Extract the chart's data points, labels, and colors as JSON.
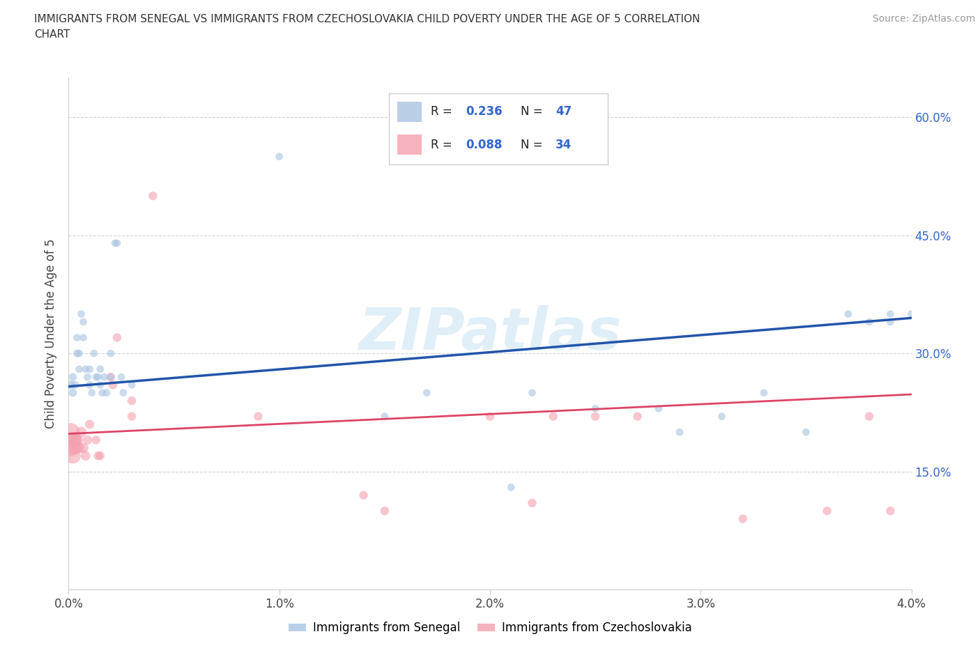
{
  "title_line1": "IMMIGRANTS FROM SENEGAL VS IMMIGRANTS FROM CZECHOSLOVAKIA CHILD POVERTY UNDER THE AGE OF 5 CORRELATION",
  "title_line2": "CHART",
  "ylabel": "Child Poverty Under the Age of 5",
  "source": "Source: ZipAtlas.com",
  "xlim": [
    0.0,
    0.04
  ],
  "ylim": [
    0.0,
    0.65
  ],
  "xtick_vals": [
    0.0,
    0.01,
    0.02,
    0.03,
    0.04
  ],
  "xtick_labels": [
    "0.0%",
    "1.0%",
    "2.0%",
    "3.0%",
    "4.0%"
  ],
  "ytick_vals": [
    0.0,
    0.15,
    0.3,
    0.45,
    0.6
  ],
  "ytick_labels_right": [
    "",
    "15.0%",
    "30.0%",
    "45.0%",
    "60.0%"
  ],
  "blue_fill": "#A8C4E0",
  "pink_fill": "#F4A0B0",
  "blue_line": "#2255AA",
  "pink_line": "#DD4466",
  "watermark_text": "ZIPatlas",
  "r1": "0.236",
  "n1": "47",
  "r2": "0.088",
  "n2": "34",
  "accent_color": "#3366CC",
  "legend_label1": "Immigrants from Senegal",
  "legend_label2": "Immigrants from Czechoslovakia",
  "blue_x": [
    0.0001,
    0.0002,
    0.0002,
    0.0003,
    0.0004,
    0.0004,
    0.0005,
    0.0005,
    0.0006,
    0.0007,
    0.0007,
    0.0008,
    0.0009,
    0.001,
    0.001,
    0.0011,
    0.0012,
    0.0013,
    0.0014,
    0.0015,
    0.0015,
    0.0016,
    0.0017,
    0.0018,
    0.002,
    0.002,
    0.0022,
    0.0023,
    0.0025,
    0.0026,
    0.003,
    0.01,
    0.015,
    0.017,
    0.021,
    0.022,
    0.025,
    0.028,
    0.029,
    0.031,
    0.033,
    0.035,
    0.037,
    0.038,
    0.039,
    0.039,
    0.04
  ],
  "blue_y": [
    0.26,
    0.25,
    0.27,
    0.26,
    0.3,
    0.32,
    0.28,
    0.3,
    0.35,
    0.32,
    0.34,
    0.28,
    0.27,
    0.26,
    0.28,
    0.25,
    0.3,
    0.27,
    0.27,
    0.26,
    0.28,
    0.25,
    0.27,
    0.25,
    0.27,
    0.3,
    0.44,
    0.44,
    0.27,
    0.25,
    0.26,
    0.55,
    0.22,
    0.25,
    0.13,
    0.25,
    0.23,
    0.23,
    0.2,
    0.22,
    0.25,
    0.2,
    0.35,
    0.34,
    0.35,
    0.34,
    0.35
  ],
  "blue_sizes": [
    80,
    70,
    70,
    70,
    60,
    60,
    60,
    60,
    60,
    60,
    60,
    60,
    60,
    60,
    60,
    60,
    60,
    60,
    60,
    60,
    60,
    60,
    60,
    60,
    60,
    60,
    60,
    60,
    60,
    60,
    60,
    60,
    60,
    60,
    60,
    60,
    60,
    60,
    60,
    60,
    60,
    60,
    60,
    60,
    60,
    60,
    60
  ],
  "pink_x": [
    0.0001,
    0.0001,
    0.0002,
    0.0002,
    0.0003,
    0.0003,
    0.0004,
    0.0005,
    0.0006,
    0.0007,
    0.0008,
    0.0009,
    0.001,
    0.0013,
    0.0014,
    0.0015,
    0.002,
    0.0021,
    0.0023,
    0.003,
    0.003,
    0.004,
    0.009,
    0.014,
    0.015,
    0.02,
    0.022,
    0.023,
    0.025,
    0.027,
    0.032,
    0.036,
    0.038,
    0.039
  ],
  "pink_y": [
    0.2,
    0.18,
    0.19,
    0.17,
    0.19,
    0.18,
    0.19,
    0.18,
    0.2,
    0.18,
    0.17,
    0.19,
    0.21,
    0.19,
    0.17,
    0.17,
    0.27,
    0.26,
    0.32,
    0.22,
    0.24,
    0.5,
    0.22,
    0.12,
    0.1,
    0.22,
    0.11,
    0.22,
    0.22,
    0.22,
    0.09,
    0.1,
    0.22,
    0.1
  ],
  "pink_sizes": [
    350,
    300,
    280,
    260,
    200,
    180,
    150,
    130,
    120,
    110,
    100,
    90,
    90,
    80,
    80,
    80,
    80,
    80,
    80,
    80,
    80,
    80,
    80,
    80,
    80,
    80,
    80,
    80,
    80,
    80,
    80,
    80,
    80,
    80
  ],
  "blue_trend_x0": 0.0,
  "blue_trend_y0": 0.258,
  "blue_trend_x1": 0.04,
  "blue_trend_y1": 0.345,
  "pink_trend_x0": 0.0,
  "pink_trend_y0": 0.198,
  "pink_trend_x1": 0.04,
  "pink_trend_y1": 0.248
}
